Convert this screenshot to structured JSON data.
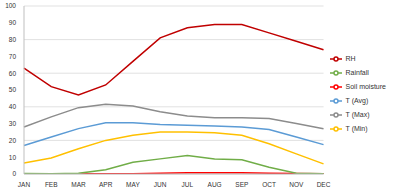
{
  "chart_data": {
    "type": "line",
    "categories": [
      "JAN",
      "FEB",
      "MAR",
      "APR",
      "MAY",
      "JUN",
      "JUL",
      "AUG",
      "SEP",
      "OCT",
      "NOV",
      "DEC"
    ],
    "series": [
      {
        "name": "T (Avg)",
        "color": "#5b9bd5",
        "values": [
          17,
          22,
          27,
          30.5,
          30.5,
          29.5,
          29,
          28.5,
          28,
          26.5,
          22,
          17.5
        ]
      },
      {
        "name": "RH",
        "color": "#c00000",
        "values": [
          63,
          52,
          47,
          53,
          67,
          81,
          87,
          89,
          89,
          84,
          79,
          74
        ]
      },
      {
        "name": "T (Max)",
        "color": "#8c8c8c",
        "values": [
          28,
          34,
          39.5,
          41.5,
          40.5,
          37,
          34.5,
          33.5,
          33.5,
          33,
          30,
          27
        ]
      },
      {
        "name": "T (Min)",
        "color": "#ffc000",
        "values": [
          6.5,
          9.5,
          15,
          20,
          23,
          25,
          25,
          24.5,
          23,
          18,
          12,
          6
        ]
      },
      {
        "name": "Soil moisture",
        "color": "#ff0000",
        "values": [
          0.2,
          0.2,
          0.1,
          0.1,
          0.2,
          0.5,
          0.8,
          0.8,
          0.7,
          0.5,
          0.3,
          0.2
        ]
      },
      {
        "name": "Rainfall",
        "color": "#70ad47",
        "values": [
          0.3,
          0.2,
          0.4,
          2.5,
          7,
          9,
          11,
          9,
          8.5,
          4,
          0.5,
          0.2
        ]
      }
    ],
    "ylim": [
      0,
      100
    ],
    "yticks": [
      0,
      10,
      20,
      30,
      40,
      50,
      60,
      70,
      80,
      90,
      100
    ],
    "grid": true,
    "legend": "right"
  }
}
